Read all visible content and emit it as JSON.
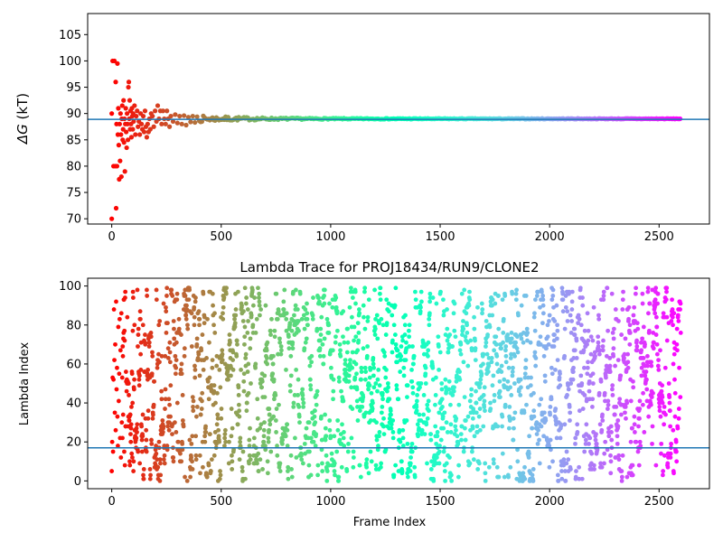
{
  "chart_data": [
    {
      "type": "scatter",
      "title": "",
      "xlabel": "",
      "ylabel_symbol": "ΔG",
      "ylabel_unit": "(kT)",
      "xlim": [
        -110,
        2730
      ],
      "ylim": [
        69,
        109
      ],
      "xticks": [
        0,
        500,
        1000,
        1500,
        2000,
        2500
      ],
      "yticks": [
        70,
        75,
        80,
        85,
        90,
        95,
        100,
        105
      ],
      "hline": 88.9,
      "hline_color": "#1f77b4",
      "colormap": "rainbow",
      "x_max": 2600,
      "early_points": [
        [
          0,
          70
        ],
        [
          0,
          90
        ],
        [
          4,
          100
        ],
        [
          8,
          80
        ],
        [
          12,
          100
        ],
        [
          16,
          80
        ],
        [
          18,
          96
        ],
        [
          20,
          72
        ],
        [
          22,
          88
        ],
        [
          24,
          80
        ],
        [
          26,
          99.5
        ],
        [
          28,
          86
        ],
        [
          30,
          91
        ],
        [
          32,
          84
        ],
        [
          34,
          77.5
        ],
        [
          36,
          88
        ],
        [
          38,
          81
        ],
        [
          40,
          90
        ],
        [
          42,
          86
        ],
        [
          44,
          78
        ],
        [
          46,
          89
        ],
        [
          48,
          91.5
        ],
        [
          50,
          85
        ],
        [
          52,
          87
        ],
        [
          54,
          92.5
        ],
        [
          56,
          84.5
        ],
        [
          58,
          89
        ],
        [
          60,
          79
        ],
        [
          62,
          88
        ],
        [
          64,
          91
        ],
        [
          66,
          86.5
        ],
        [
          68,
          83.5
        ],
        [
          70,
          90
        ],
        [
          72,
          88
        ],
        [
          74,
          85
        ],
        [
          76,
          95
        ],
        [
          78,
          96
        ],
        [
          80,
          89
        ],
        [
          82,
          92.5
        ],
        [
          84,
          87
        ],
        [
          86,
          90.5
        ],
        [
          88,
          88
        ],
        [
          90,
          85.5
        ],
        [
          92,
          91
        ],
        [
          94,
          89.5
        ],
        [
          96,
          87
        ],
        [
          98,
          90
        ],
        [
          100,
          88.5
        ],
        [
          104,
          91.5
        ],
        [
          108,
          86
        ],
        [
          112,
          89.5
        ],
        [
          116,
          90.5
        ],
        [
          120,
          87.5
        ],
        [
          124,
          88.5
        ],
        [
          128,
          86
        ],
        [
          132,
          90
        ],
        [
          136,
          88
        ],
        [
          140,
          87
        ],
        [
          144,
          89.5
        ],
        [
          148,
          86.5
        ],
        [
          152,
          90.5
        ],
        [
          156,
          87.5
        ],
        [
          160,
          85.5
        ],
        [
          164,
          88
        ],
        [
          168,
          86.5
        ],
        [
          172,
          89
        ],
        [
          176,
          87
        ],
        [
          180,
          90
        ],
        [
          186,
          89.5
        ],
        [
          192,
          87.5
        ],
        [
          198,
          90.5
        ],
        [
          204,
          88.5
        ],
        [
          210,
          91.5
        ],
        [
          216,
          89
        ],
        [
          222,
          90.5
        ],
        [
          228,
          88
        ],
        [
          234,
          90.5
        ],
        [
          240,
          89
        ],
        [
          246,
          88
        ],
        [
          252,
          90.5
        ],
        [
          258,
          89
        ],
        [
          264,
          87.5
        ],
        [
          270,
          89.5
        ],
        [
          280,
          88.5
        ],
        [
          290,
          89.8
        ],
        [
          300,
          88.2
        ],
        [
          310,
          89.5
        ],
        [
          320,
          88
        ],
        [
          330,
          89.6
        ],
        [
          340,
          87.8
        ],
        [
          350,
          89.3
        ],
        [
          360,
          88.4
        ],
        [
          370,
          89.5
        ],
        [
          380,
          88.3
        ],
        [
          390,
          89.4
        ],
        [
          400,
          88.6
        ]
      ]
    },
    {
      "type": "scatter",
      "title": "Lambda Trace for PROJ18434/RUN9/CLONE2",
      "xlabel": "Frame Index",
      "ylabel": "Lambda Index",
      "xlim": [
        -110,
        2730
      ],
      "ylim": [
        -4,
        104
      ],
      "xticks": [
        0,
        500,
        1000,
        1500,
        2000,
        2500
      ],
      "yticks": [
        0,
        20,
        40,
        60,
        80,
        100
      ],
      "hline": 17,
      "hline_color": "#1f77b4",
      "colormap": "rainbow",
      "n_points": 2600,
      "value_range": [
        0,
        99
      ],
      "seed": 18434,
      "early_points": [
        [
          0,
          5
        ],
        [
          2,
          20
        ],
        [
          4,
          53
        ],
        [
          6,
          15
        ],
        [
          8,
          52
        ],
        [
          10,
          88
        ],
        [
          12,
          62
        ],
        [
          14,
          35
        ],
        [
          16,
          70
        ],
        [
          18,
          26
        ],
        [
          20,
          92
        ],
        [
          22,
          47
        ],
        [
          24,
          58
        ],
        [
          26,
          33
        ],
        [
          28,
          18
        ],
        [
          30,
          79
        ],
        [
          32,
          41
        ],
        [
          34,
          55
        ],
        [
          36,
          83
        ],
        [
          38,
          22
        ],
        [
          40,
          67
        ],
        [
          42,
          12
        ],
        [
          44,
          86
        ],
        [
          46,
          30
        ],
        [
          48,
          53
        ]
      ]
    }
  ]
}
